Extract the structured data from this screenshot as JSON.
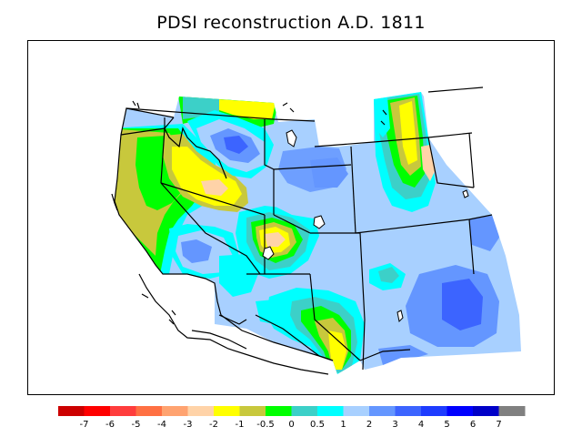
{
  "title": "PDSI reconstruction A.D. 1811",
  "legend": {
    "colors": [
      "#cc0000",
      "#ff0000",
      "#ff3d3d",
      "#ff7043",
      "#ffa370",
      "#ffd3a8",
      "#ffff00",
      "#c8c83c",
      "#00ff00",
      "#3cd0c8",
      "#00ffff",
      "#a8d0ff",
      "#6496ff",
      "#3c64ff",
      "#1e3cff",
      "#0000ff",
      "#0000c8",
      "#808080"
    ],
    "ticks": [
      "-7",
      "-6",
      "-5",
      "-4",
      "-3",
      "-2",
      "-1",
      "-0.5",
      "0",
      "0.5",
      "1",
      "2",
      "3",
      "4",
      "5",
      "6",
      "7"
    ]
  }
}
